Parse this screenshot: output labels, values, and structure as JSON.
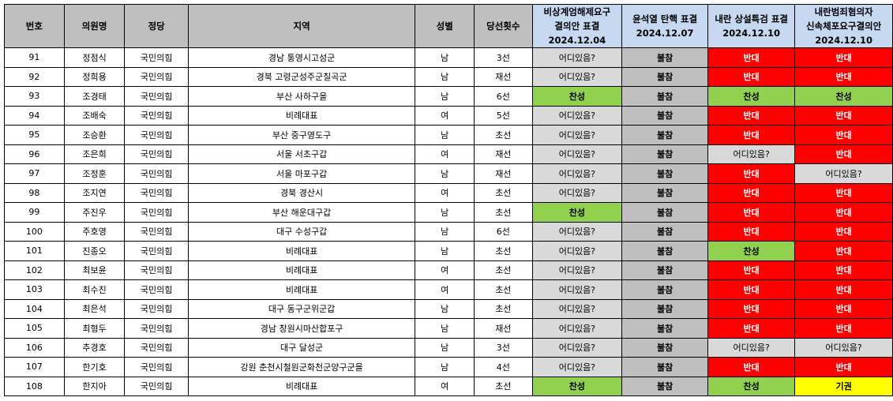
{
  "headers": {
    "no": "번호",
    "name": "의원명",
    "party": "정당",
    "region": "지역",
    "gender": "성별",
    "terms": "당선횟수",
    "vote1": [
      "비상계엄해제요구",
      "결의안 표결",
      "2024.12.04"
    ],
    "vote2": [
      "윤석열 탄핵 표결",
      "2024.12.07"
    ],
    "vote3": [
      "내란 상설특검 표결",
      "2024.12.10"
    ],
    "vote4": [
      "내란범죄혐의자",
      "신속체포요구결의안",
      "2024.12.10"
    ]
  },
  "colors": {
    "header_gray": "#bfbfbf",
    "header_blue": "#c6d9f1",
    "absent": "#bfbfbf",
    "where": "#d9d9d9",
    "yes": "#92d050",
    "no": "#ff0000",
    "abstain": "#ffff00"
  },
  "rows": [
    {
      "no": "91",
      "name": "정점식",
      "party": "국민의힘",
      "region": "경남 통영시고성군",
      "gender": "남",
      "terms": "3선",
      "v1": "어디있음?",
      "v2": "불참",
      "v3": "반대",
      "v4": "반대"
    },
    {
      "no": "92",
      "name": "정희용",
      "party": "국민의힘",
      "region": "경북 고령군성주군칠곡군",
      "gender": "남",
      "terms": "재선",
      "v1": "어디있음?",
      "v2": "불참",
      "v3": "반대",
      "v4": "반대"
    },
    {
      "no": "93",
      "name": "조경태",
      "party": "국민의힘",
      "region": "부산 사하구을",
      "gender": "남",
      "terms": "6선",
      "v1": "찬성",
      "v2": "불참",
      "v3": "찬성",
      "v4": "찬성"
    },
    {
      "no": "94",
      "name": "조배숙",
      "party": "국민의힘",
      "region": "비례대표",
      "gender": "여",
      "terms": "5선",
      "v1": "어디있음?",
      "v2": "불참",
      "v3": "반대",
      "v4": "반대"
    },
    {
      "no": "95",
      "name": "조승환",
      "party": "국민의힘",
      "region": "부산 중구영도구",
      "gender": "남",
      "terms": "초선",
      "v1": "어디있음?",
      "v2": "불참",
      "v3": "반대",
      "v4": "반대"
    },
    {
      "no": "96",
      "name": "조은희",
      "party": "국민의힘",
      "region": "서울 서초구갑",
      "gender": "여",
      "terms": "재선",
      "v1": "어디있음?",
      "v2": "불참",
      "v3": "어디있음?",
      "v4": "반대"
    },
    {
      "no": "97",
      "name": "조정훈",
      "party": "국민의힘",
      "region": "서울 마포구갑",
      "gender": "남",
      "terms": "재선",
      "v1": "어디있음?",
      "v2": "불참",
      "v3": "반대",
      "v4": "어디있음?"
    },
    {
      "no": "98",
      "name": "조지연",
      "party": "국민의힘",
      "region": "경북 경산시",
      "gender": "여",
      "terms": "초선",
      "v1": "어디있음?",
      "v2": "불참",
      "v3": "반대",
      "v4": "반대"
    },
    {
      "no": "99",
      "name": "주진우",
      "party": "국민의힘",
      "region": "부산 해운대구갑",
      "gender": "남",
      "terms": "초선",
      "v1": "찬성",
      "v2": "불참",
      "v3": "반대",
      "v4": "반대"
    },
    {
      "no": "100",
      "name": "주호영",
      "party": "국민의힘",
      "region": "대구 수성구갑",
      "gender": "남",
      "terms": "6선",
      "v1": "어디있음?",
      "v2": "불참",
      "v3": "반대",
      "v4": "반대"
    },
    {
      "no": "101",
      "name": "진종오",
      "party": "국민의힘",
      "region": "비례대표",
      "gender": "남",
      "terms": "초선",
      "v1": "어디있음?",
      "v2": "불참",
      "v3": "찬성",
      "v4": "반대"
    },
    {
      "no": "102",
      "name": "최보윤",
      "party": "국민의힘",
      "region": "비례대표",
      "gender": "여",
      "terms": "초선",
      "v1": "어디있음?",
      "v2": "불참",
      "v3": "반대",
      "v4": "반대"
    },
    {
      "no": "103",
      "name": "최수진",
      "party": "국민의힘",
      "region": "비례대표",
      "gender": "여",
      "terms": "초선",
      "v1": "어디있음?",
      "v2": "불참",
      "v3": "반대",
      "v4": "반대"
    },
    {
      "no": "104",
      "name": "최은석",
      "party": "국민의힘",
      "region": "대구 동구군위군갑",
      "gender": "남",
      "terms": "초선",
      "v1": "어디있음?",
      "v2": "불참",
      "v3": "반대",
      "v4": "반대"
    },
    {
      "no": "105",
      "name": "최형두",
      "party": "국민의힘",
      "region": "경남 창원시마산합포구",
      "gender": "남",
      "terms": "재선",
      "v1": "어디있음?",
      "v2": "불참",
      "v3": "반대",
      "v4": "반대"
    },
    {
      "no": "106",
      "name": "추경호",
      "party": "국민의힘",
      "region": "대구 달성군",
      "gender": "남",
      "terms": "3선",
      "v1": "어디있음?",
      "v2": "불참",
      "v3": "어디있음?",
      "v4": "어디있음?"
    },
    {
      "no": "107",
      "name": "한기호",
      "party": "국민의힘",
      "region": "강원 춘천시철원군화천군양구군을",
      "gender": "남",
      "terms": "4선",
      "v1": "어디있음?",
      "v2": "불참",
      "v3": "반대",
      "v4": "반대"
    },
    {
      "no": "108",
      "name": "한지아",
      "party": "국민의힘",
      "region": "비례대표",
      "gender": "여",
      "terms": "초선",
      "v1": "찬성",
      "v2": "불참",
      "v3": "찬성",
      "v4": "기권"
    }
  ]
}
